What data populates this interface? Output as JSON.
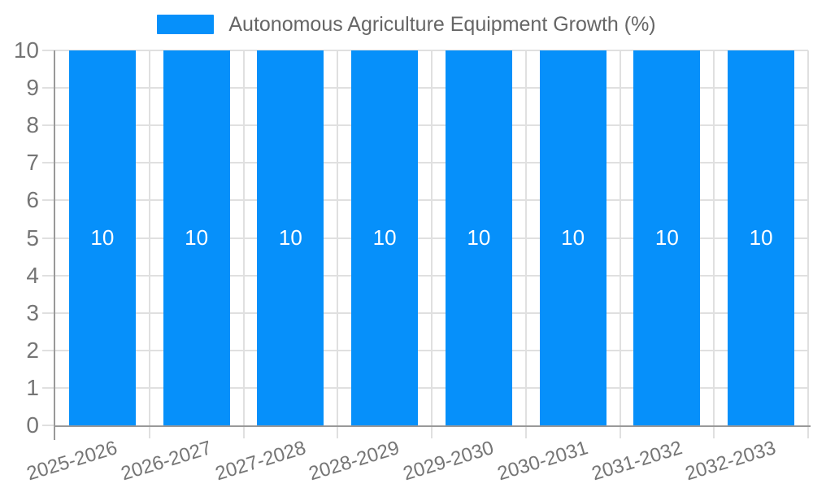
{
  "legend": {
    "label": "Autonomous Agriculture Equipment Growth (%)"
  },
  "chart_data": {
    "type": "bar",
    "title": "Autonomous Agriculture Equipment Growth (%)",
    "categories": [
      "2025-2026",
      "2026-2027",
      "2027-2028",
      "2028-2029",
      "2029-2030",
      "2030-2031",
      "2031-2032",
      "2032-2033"
    ],
    "series": [
      {
        "name": "Autonomous Agriculture Equipment Growth (%)",
        "values": [
          10,
          10,
          10,
          10,
          10,
          10,
          10,
          10
        ]
      }
    ],
    "bar_value_labels": [
      "10",
      "10",
      "10",
      "10",
      "10",
      "10",
      "10",
      "10"
    ],
    "xlabel": "",
    "ylabel": "",
    "ylim": [
      0,
      10
    ],
    "ytick_step": 1,
    "ytick_labels": [
      "0",
      "1",
      "2",
      "3",
      "4",
      "5",
      "6",
      "7",
      "8",
      "9",
      "10"
    ],
    "grid": "horizontal and vertical gridlines with outside tick extensions",
    "legend_position": "top-center",
    "x_label_rotation_deg": -17,
    "colors": {
      "bar": "#0690fa",
      "grid": "#e0e0e0",
      "axis": "#999999",
      "axis_label": "#757575",
      "bar_label": "#ffffff",
      "legend_text": "#666666",
      "background": "#ffffff"
    }
  }
}
